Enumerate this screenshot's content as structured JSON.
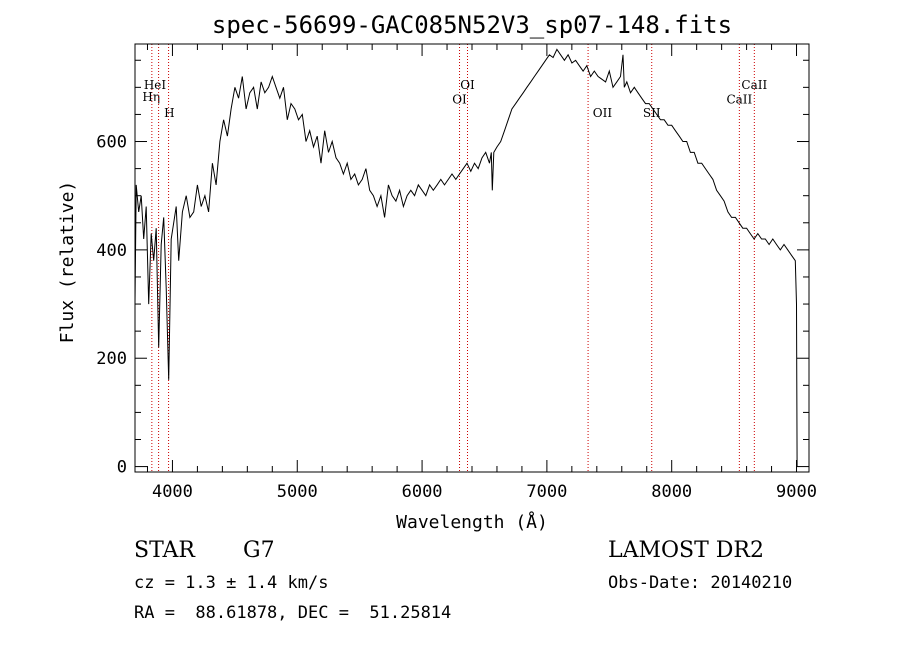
{
  "chart_data": {
    "type": "line",
    "title": "spec-56699-GAC085N52V3_sp07-148.fits",
    "xlabel": "Wavelength (Å)",
    "ylabel": "Flux (relative)",
    "xlim": [
      3700,
      9100
    ],
    "ylim": [
      -10,
      780
    ],
    "x_ticks": [
      4000,
      5000,
      6000,
      7000,
      8000,
      9000
    ],
    "y_ticks": [
      0,
      200,
      400,
      600
    ],
    "grid": false,
    "series": [
      {
        "x": [
          3700,
          3710,
          3730,
          3750,
          3770,
          3790,
          3810,
          3830,
          3850,
          3870,
          3890,
          3910,
          3930,
          3950,
          3970,
          3990,
          4010,
          4030,
          4050,
          4080,
          4110,
          4140,
          4170,
          4200,
          4230,
          4260,
          4290,
          4320,
          4350,
          4380,
          4410,
          4440,
          4470,
          4500,
          4530,
          4560,
          4590,
          4620,
          4650,
          4680,
          4710,
          4740,
          4770,
          4800,
          4830,
          4860,
          4890,
          4920,
          4950,
          4980,
          5010,
          5040,
          5070,
          5100,
          5130,
          5160,
          5190,
          5220,
          5250,
          5280,
          5310,
          5340,
          5370,
          5400,
          5430,
          5460,
          5490,
          5520,
          5550,
          5580,
          5610,
          5640,
          5670,
          5700,
          5730,
          5760,
          5790,
          5820,
          5850,
          5880,
          5910,
          5940,
          5970,
          6000,
          6030,
          6060,
          6090,
          6120,
          6150,
          6180,
          6210,
          6240,
          6270,
          6300,
          6330,
          6360,
          6390,
          6420,
          6450,
          6480,
          6510,
          6540,
          6555,
          6563,
          6575,
          6600,
          6630,
          6660,
          6690,
          6720,
          6750,
          6780,
          6810,
          6840,
          6870,
          6900,
          6930,
          6960,
          6990,
          7020,
          7050,
          7080,
          7110,
          7140,
          7170,
          7200,
          7230,
          7260,
          7290,
          7320,
          7350,
          7380,
          7410,
          7440,
          7470,
          7500,
          7530,
          7560,
          7590,
          7610,
          7620,
          7640,
          7670,
          7700,
          7730,
          7760,
          7790,
          7820,
          7850,
          7880,
          7910,
          7940,
          7970,
          8000,
          8030,
          8060,
          8090,
          8120,
          8150,
          8180,
          8210,
          8240,
          8270,
          8300,
          8330,
          8360,
          8390,
          8420,
          8450,
          8480,
          8510,
          8540,
          8570,
          8600,
          8630,
          8660,
          8690,
          8720,
          8750,
          8780,
          8810,
          8840,
          8870,
          8900,
          8930,
          8960,
          8990,
          9000,
          9005
        ],
        "y": [
          300,
          520,
          470,
          500,
          420,
          480,
          300,
          430,
          380,
          440,
          220,
          410,
          460,
          330,
          160,
          420,
          450,
          480,
          380,
          470,
          500,
          460,
          470,
          520,
          480,
          500,
          470,
          560,
          520,
          600,
          640,
          610,
          660,
          700,
          680,
          720,
          660,
          690,
          700,
          660,
          710,
          690,
          700,
          720,
          700,
          680,
          700,
          640,
          670,
          660,
          640,
          650,
          600,
          620,
          590,
          610,
          560,
          620,
          580,
          600,
          570,
          560,
          540,
          560,
          530,
          540,
          520,
          530,
          550,
          510,
          500,
          480,
          500,
          460,
          520,
          500,
          490,
          510,
          480,
          500,
          510,
          500,
          520,
          510,
          500,
          520,
          510,
          520,
          530,
          520,
          530,
          540,
          530,
          540,
          550,
          560,
          545,
          560,
          550,
          570,
          580,
          560,
          580,
          510,
          580,
          590,
          600,
          620,
          640,
          660,
          670,
          680,
          690,
          700,
          710,
          720,
          730,
          740,
          750,
          760,
          755,
          770,
          760,
          750,
          760,
          745,
          750,
          740,
          730,
          740,
          720,
          730,
          720,
          715,
          710,
          730,
          700,
          710,
          720,
          760,
          700,
          710,
          690,
          700,
          690,
          680,
          670,
          670,
          660,
          650,
          640,
          640,
          630,
          630,
          620,
          610,
          600,
          600,
          580,
          580,
          560,
          560,
          550,
          540,
          530,
          510,
          500,
          490,
          470,
          460,
          460,
          450,
          440,
          440,
          430,
          420,
          430,
          420,
          420,
          410,
          420,
          410,
          400,
          410,
          400,
          390,
          380,
          300,
          0
        ]
      }
    ],
    "line_markers": [
      {
        "label": "Hη",
        "x": 3835,
        "label_x": 3830,
        "label_y": 675
      },
      {
        "label": "HeI",
        "x": 3889,
        "label_x": 3860,
        "label_y": 697
      },
      {
        "label": "H",
        "x": 3969,
        "label_x": 3975,
        "label_y": 645
      },
      {
        "label": "OI",
        "x": 6300,
        "label_x": 6300,
        "label_y": 670
      },
      {
        "label": "OI",
        "x": 6364,
        "label_x": 6364,
        "label_y": 697
      },
      {
        "label": "OII",
        "x": 7330,
        "label_x": 7445,
        "label_y": 645
      },
      {
        "label": "SII",
        "x": 7840,
        "label_x": 7840,
        "label_y": 645
      },
      {
        "label": "CaII",
        "x": 8542,
        "label_x": 8542,
        "label_y": 670
      },
      {
        "label": "CaII",
        "x": 8662,
        "label_x": 8662,
        "label_y": 697
      }
    ]
  },
  "info": {
    "object_class": "STAR",
    "subclass": "G7",
    "survey": "LAMOST DR2",
    "cz": "cz = 1.3 ± 1.4 km/s",
    "obs_date": "Obs-Date: 20140210",
    "coords": "RA =  88.61878, DEC =  51.25814"
  },
  "colors": {
    "spectrum": "#000000",
    "marker_line": "#cc0000",
    "axes": "#000000"
  }
}
